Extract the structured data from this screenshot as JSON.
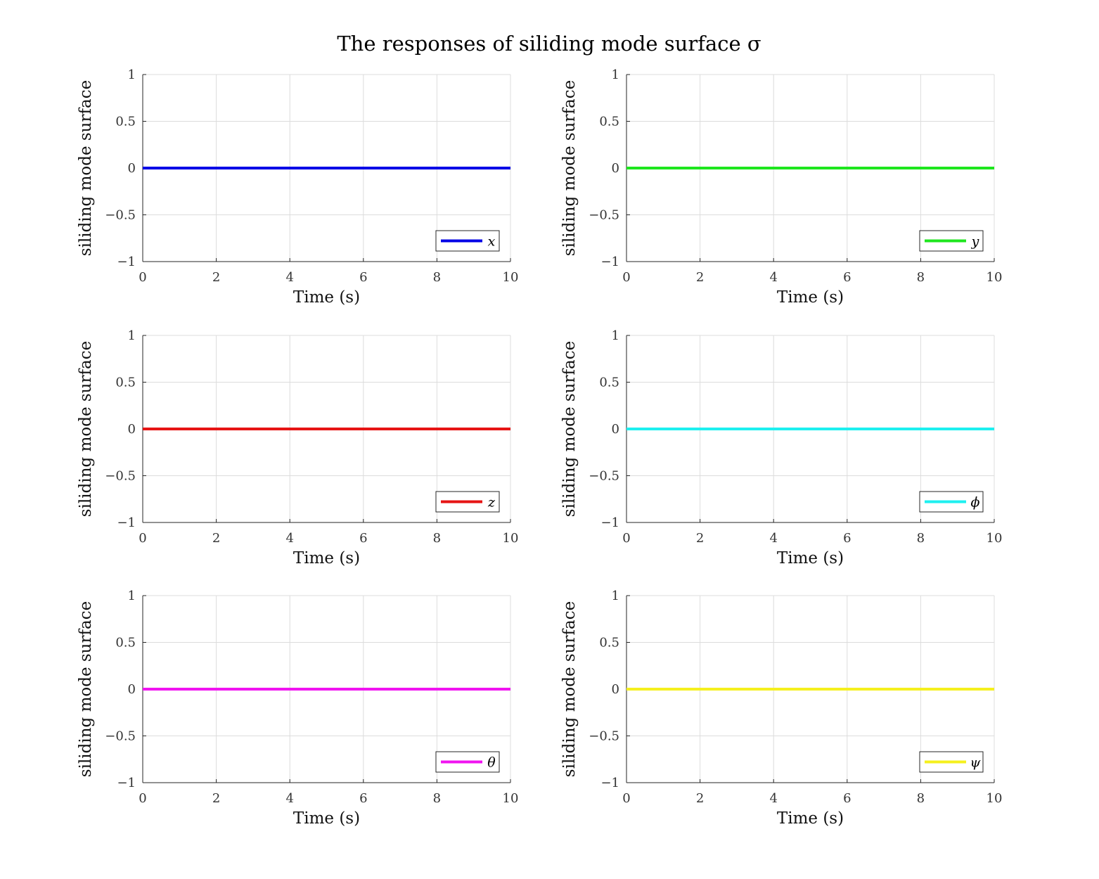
{
  "figure": {
    "title": "The responses of siliding mode surface σ"
  },
  "chart_data": [
    {
      "type": "line",
      "xlabel": "Time (s)",
      "ylabel": "siliding mode surface",
      "xlim": [
        0,
        10
      ],
      "ylim": [
        -1,
        1
      ],
      "xticks": [
        "0",
        "2",
        "4",
        "6",
        "8",
        "10"
      ],
      "yticks": [
        "1",
        "0.5",
        "0",
        "−0.5",
        "−1"
      ],
      "grid": true,
      "legend_position": "bottom-right",
      "series": [
        {
          "name": "x",
          "color": "#0000e6",
          "x": [
            0,
            10
          ],
          "y": [
            0,
            0
          ]
        }
      ]
    },
    {
      "type": "line",
      "xlabel": "Time (s)",
      "ylabel": "siliding mode surface",
      "xlim": [
        0,
        10
      ],
      "ylim": [
        -1,
        1
      ],
      "xticks": [
        "0",
        "2",
        "4",
        "6",
        "8",
        "10"
      ],
      "yticks": [
        "1",
        "0.5",
        "0",
        "−0.5",
        "−1"
      ],
      "grid": true,
      "legend_position": "bottom-right",
      "series": [
        {
          "name": "y",
          "color": "#1ee61e",
          "x": [
            0,
            10
          ],
          "y": [
            0,
            0
          ]
        }
      ]
    },
    {
      "type": "line",
      "xlabel": "Time (s)",
      "ylabel": "siliding mode surface",
      "xlim": [
        0,
        10
      ],
      "ylim": [
        -1,
        1
      ],
      "xticks": [
        "0",
        "2",
        "4",
        "6",
        "8",
        "10"
      ],
      "yticks": [
        "1",
        "0.5",
        "0",
        "−0.5",
        "−1"
      ],
      "grid": true,
      "legend_position": "bottom-right",
      "series": [
        {
          "name": "z",
          "color": "#e61414",
          "x": [
            0,
            10
          ],
          "y": [
            0,
            0
          ]
        }
      ]
    },
    {
      "type": "line",
      "xlabel": "Time (s)",
      "ylabel": "siliding mode surface",
      "xlim": [
        0,
        10
      ],
      "ylim": [
        -1,
        1
      ],
      "xticks": [
        "0",
        "2",
        "4",
        "6",
        "8",
        "10"
      ],
      "yticks": [
        "1",
        "0.5",
        "0",
        "−0.5",
        "−1"
      ],
      "grid": true,
      "legend_position": "bottom-right",
      "series": [
        {
          "name": "ϕ",
          "color": "#1ef0f0",
          "x": [
            0,
            10
          ],
          "y": [
            0,
            0
          ]
        }
      ]
    },
    {
      "type": "line",
      "xlabel": "Time (s)",
      "ylabel": "siliding mode surface",
      "xlim": [
        0,
        10
      ],
      "ylim": [
        -1,
        1
      ],
      "xticks": [
        "0",
        "2",
        "4",
        "6",
        "8",
        "10"
      ],
      "yticks": [
        "1",
        "0.5",
        "0",
        "−0.5",
        "−1"
      ],
      "grid": true,
      "legend_position": "bottom-right",
      "series": [
        {
          "name": "θ",
          "color": "#f014f0",
          "x": [
            0,
            10
          ],
          "y": [
            0,
            0
          ]
        }
      ]
    },
    {
      "type": "line",
      "xlabel": "Time (s)",
      "ylabel": "siliding mode surface",
      "xlim": [
        0,
        10
      ],
      "ylim": [
        -1,
        1
      ],
      "xticks": [
        "0",
        "2",
        "4",
        "6",
        "8",
        "10"
      ],
      "yticks": [
        "1",
        "0.5",
        "0",
        "−0.5",
        "−1"
      ],
      "grid": true,
      "legend_position": "bottom-right",
      "series": [
        {
          "name": "ψ",
          "color": "#f5f01e",
          "x": [
            0,
            10
          ],
          "y": [
            0,
            0
          ]
        }
      ]
    }
  ]
}
